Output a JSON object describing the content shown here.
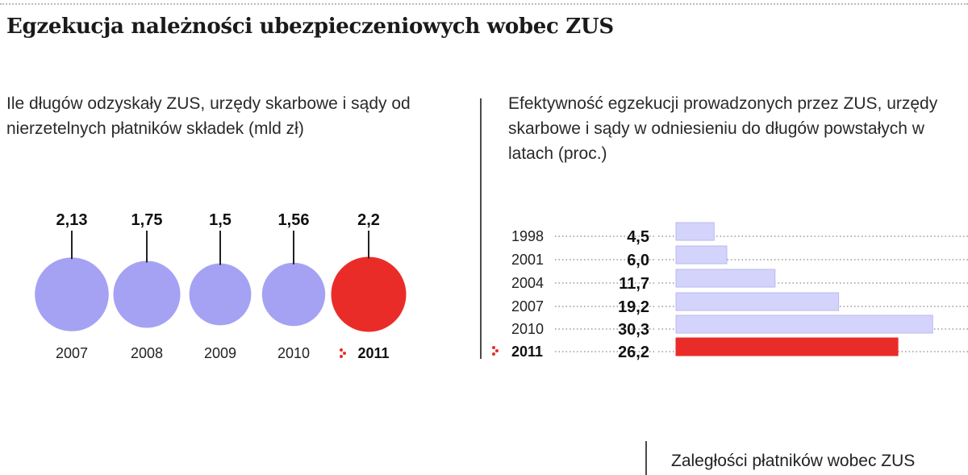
{
  "title": "Egzekucja należności ubezpieczeniowych wobec ZUS",
  "bottom_title": "Zaległości płatników wobec ZUS",
  "colors": {
    "base": "#a5a2f4",
    "highlight": "#ea2c28",
    "bar_base": "#d3d3fb",
    "bar_edge": "#b9b9f2"
  },
  "chart_data": [
    {
      "type": "bubble",
      "title": "Ile długów odzyskały ZUS, urzędy skarbowe i sądy od nierzetelnych płatników składek (mld zł)",
      "categories": [
        "2007",
        "2008",
        "2009",
        "2010",
        "2011"
      ],
      "values": [
        2.13,
        1.75,
        1.5,
        1.56,
        2.2
      ],
      "value_labels": [
        "2,13",
        "1,75",
        "1,5",
        "1,56",
        "2,2"
      ],
      "highlight": "2011"
    },
    {
      "type": "bar",
      "orientation": "horizontal",
      "title": "Efektywność egzekucji prowadzonych przez ZUS, urzędy skarbowe i sądy w odniesieniu do długów powstałych w latach (proc.)",
      "categories": [
        "1998",
        "2001",
        "2004",
        "2007",
        "2010",
        "2011"
      ],
      "values": [
        4.5,
        6.0,
        11.7,
        19.2,
        30.3,
        26.2
      ],
      "value_labels": [
        "4,5",
        "6,0",
        "11,7",
        "19,2",
        "30,3",
        "26,2"
      ],
      "highlight": "2011"
    }
  ]
}
